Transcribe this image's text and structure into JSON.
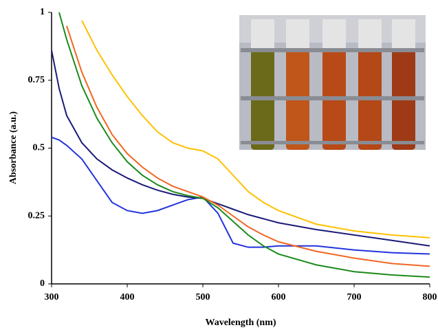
{
  "chart_data": {
    "type": "line",
    "x_label": "Wavelength (nm)",
    "y_label": "Absorbance (a.u.)",
    "x": [
      300,
      310,
      320,
      340,
      360,
      380,
      400,
      420,
      440,
      460,
      480,
      500,
      520,
      540,
      560,
      580,
      600,
      650,
      700,
      750,
      800
    ],
    "series": [
      {
        "color": "#2233dd",
        "values": [
          0.54,
          0.53,
          0.51,
          0.46,
          0.38,
          0.3,
          0.27,
          0.26,
          0.27,
          0.29,
          0.31,
          0.32,
          0.26,
          0.15,
          0.135,
          0.135,
          0.14,
          0.14,
          0.125,
          0.115,
          0.11
        ]
      },
      {
        "color": "#1a1a78",
        "values": [
          0.86,
          0.72,
          0.62,
          0.52,
          0.46,
          0.42,
          0.39,
          0.365,
          0.345,
          0.33,
          0.32,
          0.315,
          0.295,
          0.275,
          0.255,
          0.24,
          0.225,
          0.2,
          0.18,
          0.16,
          0.14
        ]
      },
      {
        "color": "#1a8a1a",
        "values": [
          null,
          1,
          0.9,
          0.73,
          0.61,
          0.52,
          0.45,
          0.4,
          0.365,
          0.34,
          0.325,
          0.315,
          0.28,
          0.23,
          0.18,
          0.14,
          0.11,
          0.07,
          0.045,
          0.033,
          0.025
        ]
      },
      {
        "color": "#f26522",
        "values": [
          null,
          null,
          0.95,
          0.78,
          0.65,
          0.55,
          0.48,
          0.43,
          0.39,
          0.36,
          0.34,
          0.32,
          0.29,
          0.25,
          0.21,
          0.18,
          0.155,
          0.12,
          0.095,
          0.075,
          0.065
        ]
      },
      {
        "color": "#ffc000",
        "values": [
          null,
          null,
          null,
          0.97,
          0.86,
          0.77,
          0.69,
          0.62,
          0.56,
          0.52,
          0.5,
          0.49,
          0.46,
          0.4,
          0.34,
          0.3,
          0.27,
          0.22,
          0.195,
          0.18,
          0.17
        ]
      }
    ],
    "xlim": [
      300,
      800
    ],
    "xticks": [
      300,
      400,
      500,
      600,
      700,
      800
    ],
    "ylim": [
      0,
      1
    ],
    "yticks": [
      0,
      0.25,
      0.5,
      0.75,
      1
    ],
    "grid": false
  }
}
